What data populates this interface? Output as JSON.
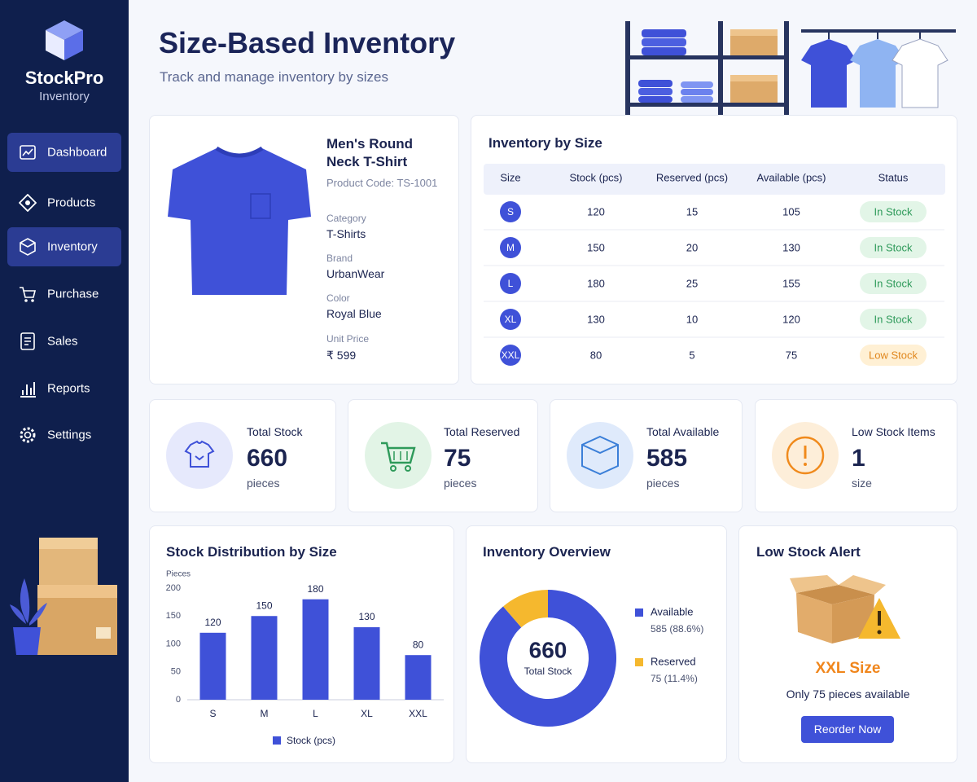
{
  "sidebar": {
    "brand": "StockPro",
    "brand_sub": "Inventory",
    "nav": [
      "Dashboard",
      "Products",
      "Inventory",
      "Purchase",
      "Sales",
      "Reports",
      "Settings"
    ]
  },
  "header": {
    "title": "Size-Based Inventory",
    "subtitle": "Track and manage inventory by sizes"
  },
  "product": {
    "name": "Men's Round Neck T-Shirt",
    "code": "Product Code: TS-1001",
    "fields": [
      {
        "label": "Category",
        "value": "T-Shirts"
      },
      {
        "label": "Brand",
        "value": "UrbanWear"
      },
      {
        "label": "Color",
        "value": "Royal Blue"
      },
      {
        "label": "Unit Price",
        "value": "₹ 599"
      }
    ]
  },
  "table": {
    "title": "Inventory by Size",
    "columns": [
      "Size",
      "Stock (pcs)",
      "Reserved (pcs)",
      "Available (pcs)",
      "Status"
    ],
    "rows": [
      {
        "size": "S",
        "stock": 120,
        "reserved": 15,
        "available": 105,
        "status": "In Stock",
        "status_color": "#2e9a5a",
        "status_bg": "#e2f5e7"
      },
      {
        "size": "M",
        "stock": 150,
        "reserved": 20,
        "available": 130,
        "status": "In Stock",
        "status_color": "#2e9a5a",
        "status_bg": "#e2f5e7"
      },
      {
        "size": "L",
        "stock": 180,
        "reserved": 25,
        "available": 155,
        "status": "In Stock",
        "status_color": "#2e9a5a",
        "status_bg": "#e2f5e7"
      },
      {
        "size": "XL",
        "stock": 130,
        "reserved": 10,
        "available": 120,
        "status": "In Stock",
        "status_color": "#2e9a5a",
        "status_bg": "#e2f5e7"
      },
      {
        "size": "XXL",
        "stock": 80,
        "reserved": 5,
        "available": 75,
        "status": "Low Stock",
        "status_color": "#e0861c",
        "status_bg": "#fff0d4"
      }
    ]
  },
  "stats": [
    {
      "label": "Total Stock",
      "value": 660,
      "unit": "pieces"
    },
    {
      "label": "Total Reserved",
      "value": 75,
      "unit": "pieces"
    },
    {
      "label": "Total Available",
      "value": 585,
      "unit": "pieces"
    },
    {
      "label": "Low Stock Items",
      "value": 1,
      "unit": "size"
    }
  ],
  "chart_data": [
    {
      "type": "bar",
      "title": "Stock Distribution by Size",
      "y_label": "Pieces",
      "categories": [
        "S",
        "M",
        "L",
        "XL",
        "XXL"
      ],
      "series": [
        {
          "name": "Stock (pcs)",
          "color": "#3f51d8",
          "values": [
            120,
            150,
            180,
            130,
            80
          ]
        }
      ],
      "ylim": [
        0,
        200
      ],
      "yticks": [
        0,
        50,
        100,
        150,
        200
      ]
    },
    {
      "type": "pie",
      "title": "Inventory Overview",
      "center_value": 660,
      "center_label": "Total Stock",
      "categories": [
        "Available",
        "Reserved"
      ],
      "values": [
        585,
        75
      ],
      "value_labels": [
        "585 (88.6%)",
        "75 (11.4%)"
      ],
      "colors": [
        "#3f51d8",
        "#f5b82e"
      ]
    }
  ],
  "alert": {
    "title": "Low Stock Alert",
    "item": "XXL Size",
    "message": "Only 75 pieces available",
    "button": "Reorder Now"
  }
}
